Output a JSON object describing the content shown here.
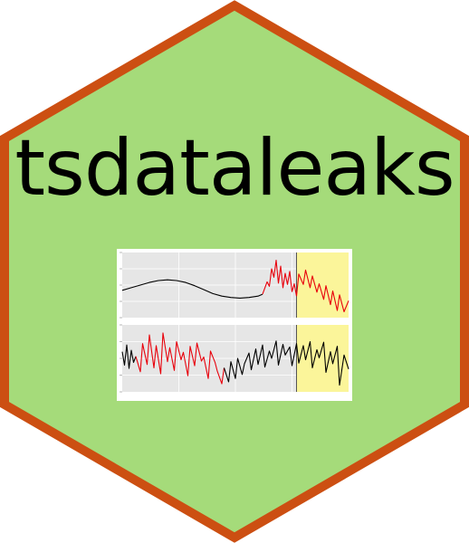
{
  "logo": {
    "title": "tsdataleaks",
    "colors": {
      "fill": "#a5db7a",
      "border": "#cc4f12",
      "text": "#000000",
      "panel_bg": "#e6e6e6",
      "highlight": "#fbf59a",
      "leak_series": "#e8000b",
      "base_series": "#000000"
    },
    "icons": [
      "hexagon-badge",
      "time-series-thumbnail"
    ]
  },
  "chart_data": [
    {
      "type": "line",
      "panel": "top",
      "x_range": [
        0,
        100
      ],
      "y_range": [
        0,
        10
      ],
      "highlight_x": [
        77,
        100
      ],
      "series": [
        {
          "color": "#000000",
          "x": [
            0,
            4,
            8,
            12,
            16,
            20,
            24,
            28,
            32,
            36,
            40,
            44,
            48,
            52,
            56,
            60,
            62
          ],
          "y": [
            4.2,
            4.6,
            5.0,
            5.4,
            5.7,
            5.8,
            5.7,
            5.4,
            4.9,
            4.3,
            3.7,
            3.3,
            3.1,
            3.0,
            3.1,
            3.3,
            3.6
          ]
        },
        {
          "color": "#e8000b",
          "x": [
            62,
            64,
            65,
            66,
            67,
            68,
            69,
            70,
            71,
            72,
            73,
            74,
            75,
            76,
            77
          ],
          "y": [
            3.6,
            5.5,
            4.8,
            7.5,
            6.2,
            8.8,
            5.3,
            7.9,
            4.6,
            6.8,
            5.1,
            7.1,
            4.0,
            5.2,
            3.3
          ],
          "name": ""
        },
        {
          "color": "#e8000b",
          "x": [
            77,
            78,
            80,
            81,
            83,
            84,
            86,
            87,
            89,
            90,
            92,
            93,
            95,
            96,
            98,
            100
          ],
          "y": [
            3.3,
            6.7,
            5.1,
            7.3,
            4.6,
            6.4,
            3.9,
            5.2,
            2.8,
            4.9,
            2.0,
            4.1,
            1.1,
            3.5,
            0.9,
            2.6
          ]
        }
      ]
    },
    {
      "type": "line",
      "panel": "bottom",
      "x_range": [
        0,
        100
      ],
      "y_range": [
        0,
        10
      ],
      "highlight_x": [
        77,
        100
      ],
      "series": [
        {
          "color": "#000000",
          "x": [
            0,
            1,
            2,
            3,
            4,
            5,
            6
          ],
          "y": [
            6.0,
            4.0,
            7.0,
            3.5,
            6.2,
            4.4,
            5.3
          ]
        },
        {
          "color": "#e8000b",
          "x": [
            6,
            8,
            9,
            11,
            12,
            14,
            15,
            17,
            18,
            20,
            21,
            23,
            24,
            26,
            27,
            29,
            30,
            32,
            33,
            35,
            36,
            38,
            39,
            41,
            42,
            44,
            45
          ],
          "y": [
            5.3,
            3.0,
            7.2,
            4.1,
            8.5,
            3.6,
            6.9,
            2.7,
            8.8,
            4.5,
            6.6,
            3.2,
            7.5,
            4.8,
            5.9,
            2.4,
            6.8,
            3.9,
            7.3,
            4.6,
            5.2,
            2.0,
            6.1,
            4.4,
            3.1,
            1.2,
            3.6
          ]
        },
        {
          "color": "#000000",
          "x": [
            45,
            47,
            48,
            50,
            51,
            53,
            54,
            56,
            57,
            59,
            60,
            62,
            63,
            65,
            66,
            68,
            69,
            71,
            72,
            74,
            75,
            77,
            78,
            80,
            81,
            83,
            84,
            86,
            87,
            89,
            90,
            92,
            93,
            95,
            96,
            98,
            100
          ],
          "y": [
            3.6,
            1.5,
            4.5,
            2.0,
            5.0,
            2.6,
            4.2,
            5.8,
            3.3,
            6.4,
            4.1,
            7.0,
            3.7,
            6.1,
            5.0,
            7.6,
            4.0,
            7.1,
            5.5,
            6.7,
            3.9,
            7.2,
            4.3,
            6.9,
            4.8,
            7.5,
            3.6,
            6.3,
            5.1,
            7.4,
            2.9,
            6.0,
            4.2,
            6.8,
            1.0,
            5.5,
            3.4
          ]
        }
      ]
    }
  ]
}
